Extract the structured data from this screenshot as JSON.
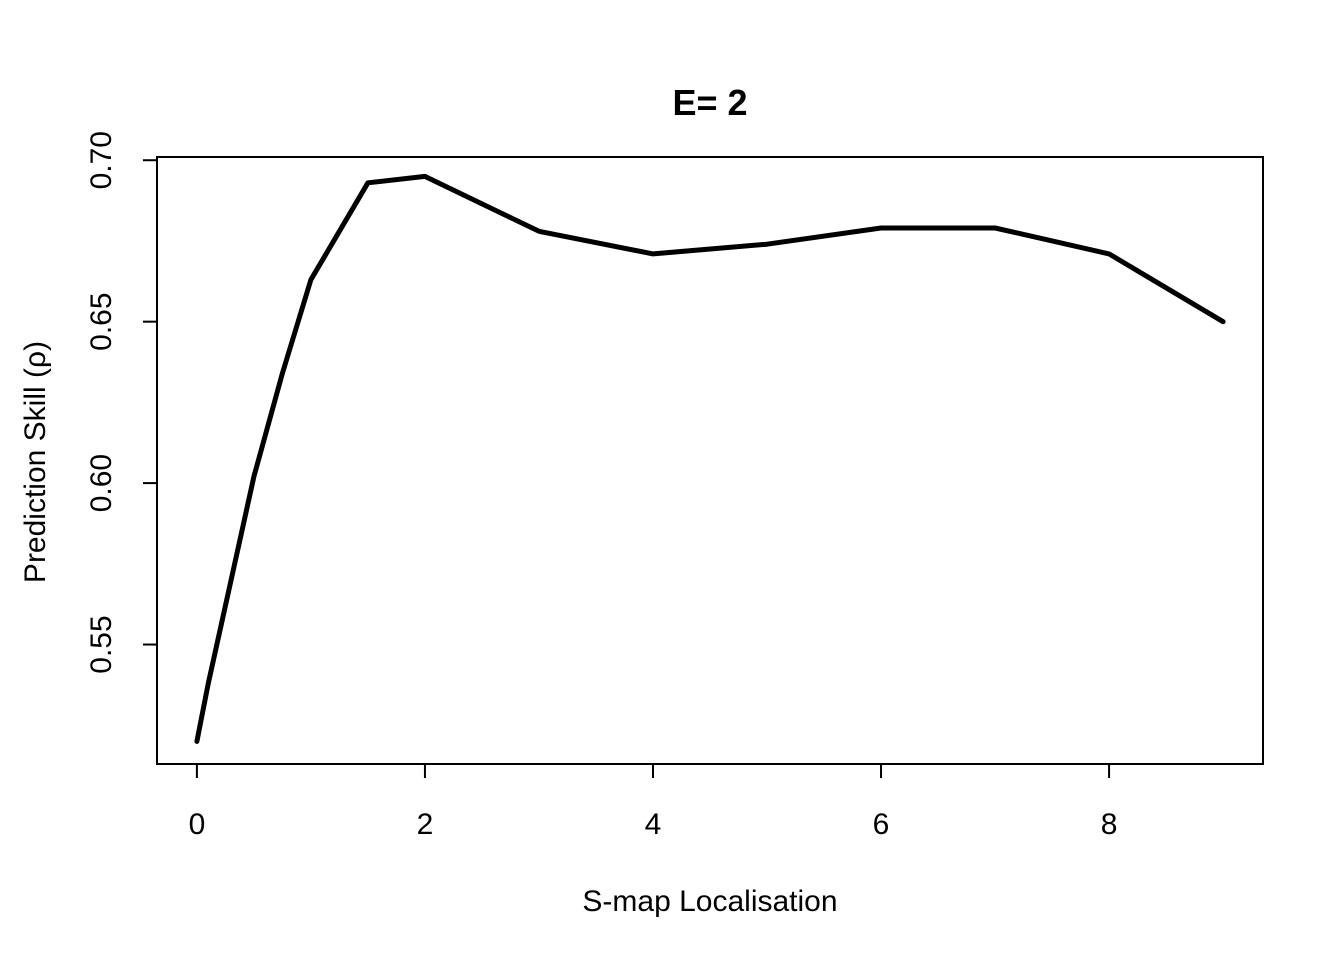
{
  "chart_data": {
    "type": "line",
    "title": "E= 2",
    "xlabel": "S-map Localisation",
    "ylabel": "Prediction Skill (ρ)",
    "xlim": [
      -0.35,
      9.35
    ],
    "ylim": [
      0.513,
      0.701
    ],
    "x_ticks": [
      0,
      2,
      4,
      6,
      8
    ],
    "x_tick_labels": [
      "0",
      "2",
      "4",
      "6",
      "8"
    ],
    "y_ticks": [
      0.55,
      0.6,
      0.65,
      0.7
    ],
    "y_tick_labels": [
      "0.55",
      "0.60",
      "0.65",
      "0.70"
    ],
    "grid": false,
    "series": [
      {
        "color": "#000000",
        "x": [
          0,
          0.1,
          0.3,
          0.5,
          0.75,
          1.0,
          1.5,
          2,
          3,
          4,
          5,
          6,
          7,
          8,
          9
        ],
        "y": [
          0.52,
          0.538,
          0.57,
          0.602,
          0.634,
          0.663,
          0.693,
          0.695,
          0.678,
          0.671,
          0.674,
          0.679,
          0.679,
          0.671,
          0.65
        ]
      }
    ]
  }
}
